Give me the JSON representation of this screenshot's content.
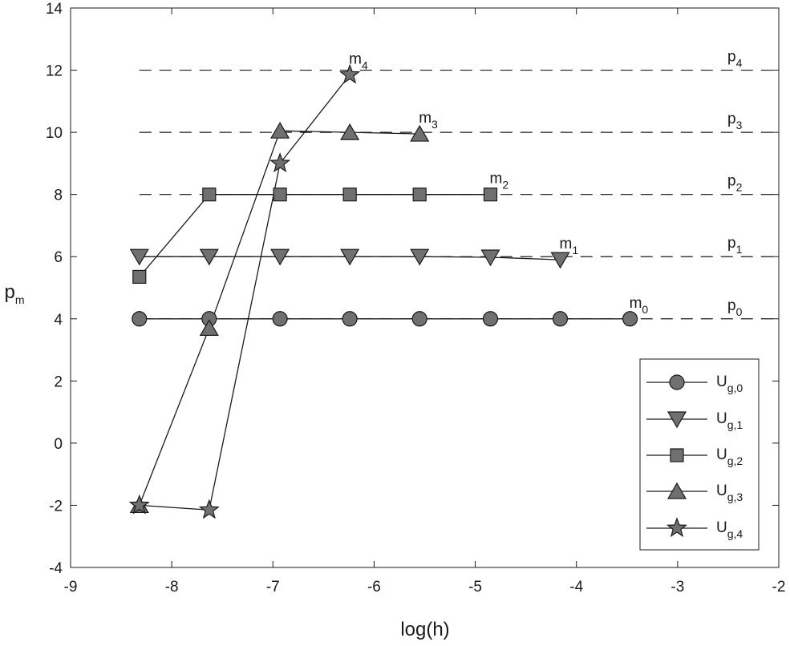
{
  "chart_data": {
    "type": "line",
    "title": "",
    "xlabel": "log(h)",
    "ylabel": "p_m",
    "xlim": [
      -9,
      -2
    ],
    "ylim": [
      -4,
      14
    ],
    "xticks": [
      -9,
      -8,
      -7,
      -6,
      -5,
      -4,
      -3,
      -2
    ],
    "yticks": [
      -4,
      -2,
      0,
      2,
      4,
      6,
      8,
      10,
      12,
      14
    ],
    "grid": false,
    "legend_position": "bottom-right",
    "colors": {
      "marker_fill": "#707070",
      "line": "#1a1a1a",
      "axes": "#1a1a1a"
    },
    "reference_lines": [
      {
        "base": "p",
        "sub": "0",
        "y": 4
      },
      {
        "base": "p",
        "sub": "1",
        "y": 6
      },
      {
        "base": "p",
        "sub": "2",
        "y": 8
      },
      {
        "base": "p",
        "sub": "3",
        "y": 10
      },
      {
        "base": "p",
        "sub": "4",
        "y": 12
      }
    ],
    "series": [
      {
        "name": "U_g,0",
        "legend_base": "U",
        "legend_sub": "g,0",
        "marker": "circle",
        "label_base": "m",
        "label_sub": "0",
        "x": [
          -8.32,
          -7.63,
          -6.93,
          -6.24,
          -5.55,
          -4.85,
          -4.16,
          -3.47
        ],
        "y": [
          4.0,
          4.0,
          4.0,
          4.0,
          4.0,
          4.0,
          4.0,
          4.0
        ]
      },
      {
        "name": "U_g,1",
        "legend_base": "U",
        "legend_sub": "g,1",
        "marker": "triangle-down",
        "label_base": "m",
        "label_sub": "1",
        "x": [
          -8.32,
          -7.63,
          -6.93,
          -6.24,
          -5.55,
          -4.85,
          -4.16
        ],
        "y": [
          6.0,
          6.0,
          6.0,
          6.0,
          6.0,
          5.98,
          5.9
        ]
      },
      {
        "name": "U_g,2",
        "legend_base": "U",
        "legend_sub": "g,2",
        "marker": "square",
        "label_base": "m",
        "label_sub": "2",
        "x": [
          -8.32,
          -7.63,
          -6.93,
          -6.24,
          -5.55,
          -4.85
        ],
        "y": [
          5.35,
          8.0,
          8.0,
          8.0,
          8.0,
          8.0
        ]
      },
      {
        "name": "U_g,3",
        "legend_base": "U",
        "legend_sub": "g,3",
        "marker": "triangle-up",
        "label_base": "m",
        "label_sub": "3",
        "x": [
          -8.32,
          -7.63,
          -6.93,
          -6.24,
          -5.55
        ],
        "y": [
          -2.0,
          3.7,
          10.05,
          10.0,
          9.95
        ]
      },
      {
        "name": "U_g,4",
        "legend_base": "U",
        "legend_sub": "g,4",
        "marker": "star",
        "label_base": "m",
        "label_sub": "4",
        "x": [
          -8.32,
          -7.63,
          -6.93,
          -6.24
        ],
        "y": [
          -2.0,
          -2.15,
          9.0,
          11.85
        ]
      }
    ]
  }
}
